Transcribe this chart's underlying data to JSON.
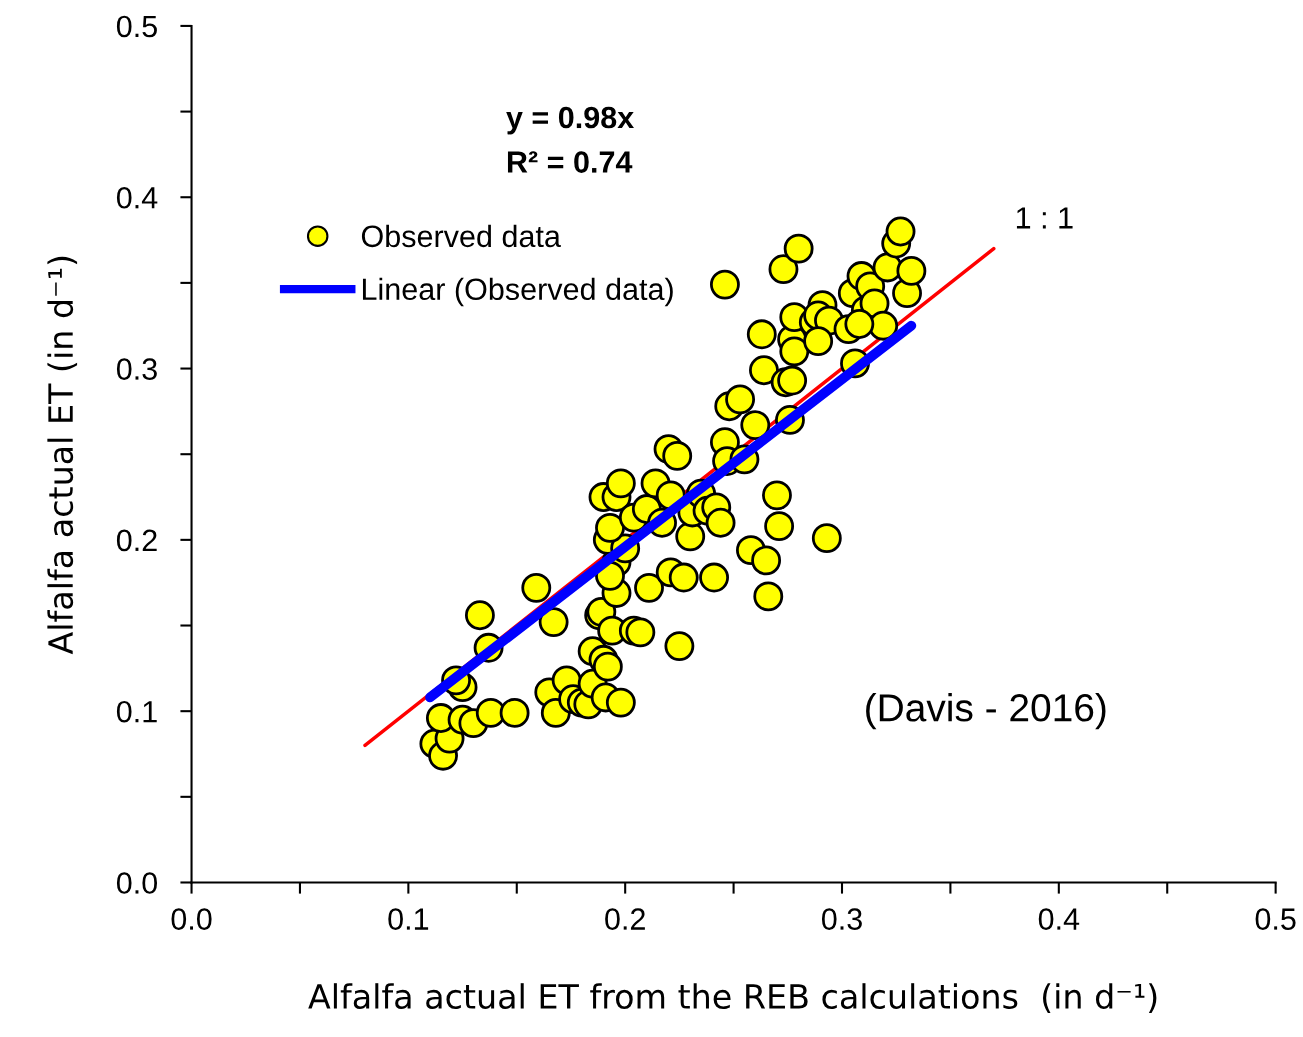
{
  "chart_data": {
    "type": "scatter",
    "xlabel": "Alfalfa actual ET from the REB calculations  (in d⁻¹)",
    "ylabel": "Alfalfa actual ET (in d⁻¹)",
    "xlim": [
      0,
      0.5
    ],
    "ylim": [
      0,
      0.5
    ],
    "xticks": [
      {
        "value": 0,
        "label": "0.0"
      },
      {
        "value": 0.05,
        "label": null
      },
      {
        "value": 0.1,
        "label": "0.1"
      },
      {
        "value": 0.15,
        "label": null
      },
      {
        "value": 0.2,
        "label": "0.2"
      },
      {
        "value": 0.25,
        "label": null
      },
      {
        "value": 0.3,
        "label": "0.3"
      },
      {
        "value": 0.35,
        "label": null
      },
      {
        "value": 0.4,
        "label": "0.4"
      },
      {
        "value": 0.45,
        "label": null
      },
      {
        "value": 0.5,
        "label": "0.5"
      }
    ],
    "yticks": [
      {
        "value": 0,
        "label": "0.0"
      },
      {
        "value": 0.05,
        "label": null
      },
      {
        "value": 0.1,
        "label": "0.1"
      },
      {
        "value": 0.15,
        "label": null
      },
      {
        "value": 0.2,
        "label": "0.2"
      },
      {
        "value": 0.25,
        "label": null
      },
      {
        "value": 0.3,
        "label": "0.3"
      },
      {
        "value": 0.35,
        "label": null
      },
      {
        "value": 0.4,
        "label": "0.4"
      },
      {
        "value": 0.45,
        "label": null
      },
      {
        "value": 0.5,
        "label": "0.5"
      }
    ],
    "grid": false,
    "legend": "top left",
    "marker": "circle",
    "series": [
      {
        "name": "Observed data",
        "color": "#ffff00",
        "x": [
          0.112,
          0.116,
          0.119,
          0.115,
          0.125,
          0.122,
          0.125,
          0.13,
          0.138,
          0.149,
          0.133,
          0.137,
          0.159,
          0.167,
          0.165,
          0.168,
          0.173,
          0.176,
          0.18,
          0.183,
          0.185,
          0.185,
          0.188,
          0.189,
          0.19,
          0.191,
          0.192,
          0.194,
          0.196,
          0.196,
          0.192,
          0.19,
          0.196,
          0.198,
          0.2,
          0.198,
          0.193,
          0.193,
          0.204,
          0.207,
          0.204,
          0.21,
          0.211,
          0.214,
          0.217,
          0.22,
          0.224,
          0.221,
          0.221,
          0.225,
          0.227,
          0.23,
          0.231,
          0.235,
          0.238,
          0.242,
          0.244,
          0.241,
          0.246,
          0.248,
          0.247,
          0.253,
          0.255,
          0.258,
          0.26,
          0.265,
          0.266,
          0.264,
          0.263,
          0.27,
          0.271,
          0.273,
          0.274,
          0.28,
          0.276,
          0.277,
          0.277,
          0.278,
          0.278,
          0.287,
          0.291,
          0.289,
          0.294,
          0.289,
          0.306,
          0.293,
          0.246,
          0.305,
          0.309,
          0.311,
          0.313,
          0.315,
          0.303,
          0.319,
          0.321,
          0.325,
          0.327,
          0.33,
          0.332,
          0.308
        ],
        "values": [
          0.081,
          0.074,
          0.084,
          0.096,
          0.114,
          0.118,
          0.095,
          0.093,
          0.099,
          0.099,
          0.156,
          0.137,
          0.172,
          0.152,
          0.111,
          0.099,
          0.118,
          0.107,
          0.105,
          0.104,
          0.116,
          0.135,
          0.156,
          0.158,
          0.13,
          0.108,
          0.126,
          0.147,
          0.187,
          0.169,
          0.2,
          0.225,
          0.225,
          0.233,
          0.195,
          0.105,
          0.179,
          0.207,
          0.147,
          0.146,
          0.213,
          0.218,
          0.172,
          0.233,
          0.21,
          0.253,
          0.249,
          0.226,
          0.181,
          0.138,
          0.178,
          0.202,
          0.216,
          0.227,
          0.217,
          0.219,
          0.21,
          0.178,
          0.257,
          0.278,
          0.246,
          0.282,
          0.247,
          0.194,
          0.267,
          0.188,
          0.167,
          0.299,
          0.32,
          0.226,
          0.208,
          0.358,
          0.292,
          0.37,
          0.27,
          0.317,
          0.293,
          0.31,
          0.33,
          0.327,
          0.337,
          0.331,
          0.328,
          0.316,
          0.303,
          0.201,
          0.349,
          0.344,
          0.354,
          0.334,
          0.348,
          0.338,
          0.323,
          0.325,
          0.359,
          0.373,
          0.38,
          0.344,
          0.357,
          0.326
        ]
      },
      {
        "name": "Linear (Observed data)",
        "type": "line",
        "color": "#0000ff",
        "marker": "none",
        "x": [
          0.11,
          0.332
        ],
        "values": [
          0.108,
          0.325
        ]
      },
      {
        "type": "line",
        "color": "#ff0000",
        "marker": "none",
        "x": [
          0.08,
          0.37
        ],
        "values": [
          0.08,
          0.37
        ]
      }
    ],
    "annotations": [
      "y = 0.98x",
      "R² = 0.74",
      {
        "text": "1 : 1",
        "x": 0.37,
        "y": 0.37
      },
      "(Davis - 2016)"
    ]
  }
}
